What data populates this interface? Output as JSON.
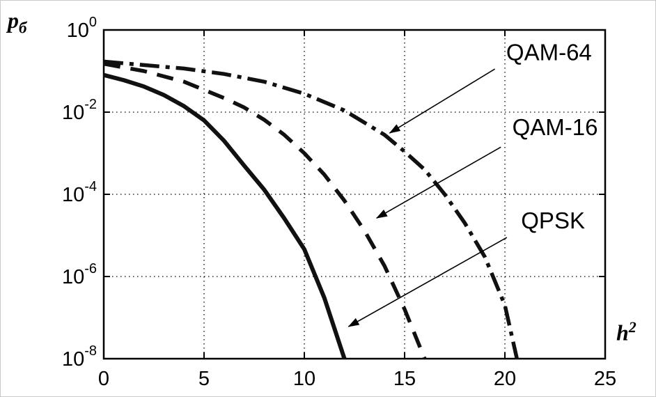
{
  "figure": {
    "background": "#ffffff",
    "ink": "#000000",
    "border": "#c9c9c9"
  },
  "chart_data": {
    "type": "line",
    "title": "",
    "xlabel": "h^2",
    "ylabel": "p_б",
    "xlabel_parts": {
      "base": "h",
      "sup": "2"
    },
    "ylabel_parts": {
      "base": "p",
      "sub": "б"
    },
    "x_scale": "linear",
    "y_scale": "log",
    "xlim": [
      0,
      25
    ],
    "ylim_exponents": [
      -8,
      0
    ],
    "x_ticks": [
      0,
      5,
      10,
      15,
      20,
      25
    ],
    "y_tick_exponents": [
      0,
      -2,
      -4,
      -6,
      -8
    ],
    "grid": "dotted",
    "legend_position": "annotated-arrows",
    "series": [
      {
        "name": "QPSK",
        "style": "solid",
        "points": [
          [
            0,
            0.08
          ],
          [
            1,
            0.06
          ],
          [
            2,
            0.042
          ],
          [
            3,
            0.026
          ],
          [
            4,
            0.014
          ],
          [
            5,
            0.0063
          ],
          [
            6,
            0.002
          ],
          [
            7,
            0.0005
          ],
          [
            8,
            0.00013
          ],
          [
            9,
            2.6e-05
          ],
          [
            10,
            4.6e-06
          ],
          [
            11,
            3e-07
          ],
          [
            12,
            1e-08
          ]
        ]
      },
      {
        "name": "QAM-16",
        "style": "dashed",
        "points": [
          [
            0,
            0.15
          ],
          [
            2,
            0.1
          ],
          [
            4,
            0.055
          ],
          [
            6,
            0.022
          ],
          [
            7,
            0.013
          ],
          [
            8,
            0.0065
          ],
          [
            9,
            0.0028
          ],
          [
            10,
            0.001
          ],
          [
            11,
            0.0003
          ],
          [
            12,
            7e-05
          ],
          [
            13,
            1.3e-05
          ],
          [
            14,
            1.8e-06
          ],
          [
            15,
            1.6e-07
          ],
          [
            16,
            1e-08
          ]
        ]
      },
      {
        "name": "QAM-64",
        "style": "dashdot",
        "points": [
          [
            0,
            0.17
          ],
          [
            2,
            0.14
          ],
          [
            4,
            0.115
          ],
          [
            6,
            0.085
          ],
          [
            8,
            0.055
          ],
          [
            10,
            0.028
          ],
          [
            12,
            0.011
          ],
          [
            14,
            0.0028
          ],
          [
            15,
            0.0011
          ],
          [
            16,
            0.0004
          ],
          [
            17,
            0.0001
          ],
          [
            18,
            2e-05
          ],
          [
            19,
            3e-06
          ],
          [
            20,
            2e-07
          ],
          [
            20.6,
            1e-08
          ]
        ]
      }
    ],
    "annotations": [
      {
        "label": "QAM-64",
        "label_x": 22.2,
        "label_exp": -0.55,
        "arrow": {
          "x1": 19.5,
          "exp1": -0.95,
          "x2": 14.25,
          "exp2": -2.51
        }
      },
      {
        "label": "QAM-16",
        "label_x": 22.5,
        "label_exp": -2.37,
        "arrow": {
          "x1": 19.8,
          "exp1": -2.85,
          "x2": 13.6,
          "exp2": -4.58
        }
      },
      {
        "label": "QPSK",
        "label_x": 22.4,
        "label_exp": -4.64,
        "arrow": {
          "x1": 20.1,
          "exp1": -5.05,
          "x2": 12.2,
          "exp2": -7.22
        }
      }
    ]
  }
}
